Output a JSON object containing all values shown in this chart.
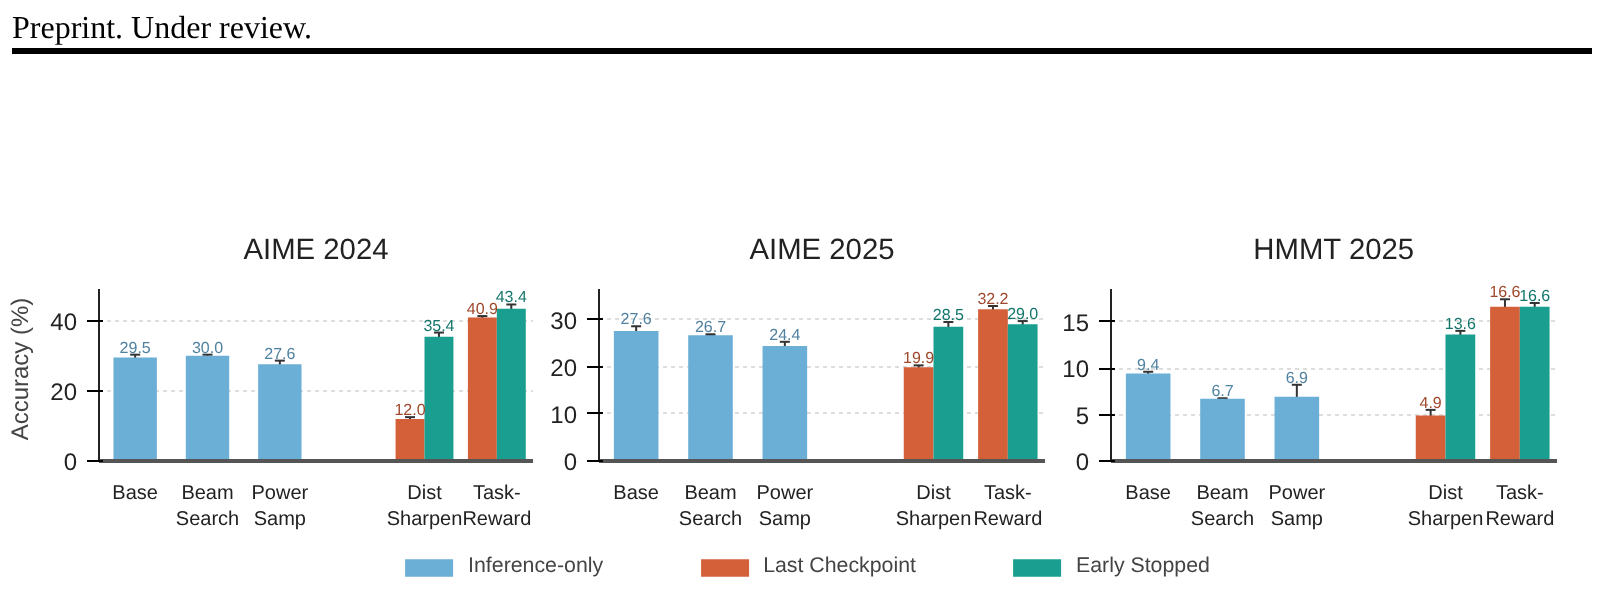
{
  "chart_data": [
    {
      "type": "bar",
      "title": "AIME 2024",
      "ylabel": "Accuracy (%)",
      "annotations": [
        "Preprint. Under review."
      ],
      "categories": [
        "Base",
        "Beam\nSearch",
        "Power\nSamp",
        null,
        "Dist\nSharpen",
        "Task-\nReward"
      ],
      "series": [
        {
          "name": "Inference-only",
          "color": "#6baed6",
          "values": [
            29.5,
            30.0,
            27.6,
            null,
            null,
            null
          ],
          "errors": [
            0.8,
            0.3,
            1.0,
            null,
            null,
            null
          ],
          "value_labels": [
            "29.5",
            "30.0",
            "27.6",
            null,
            null,
            null
          ]
        },
        {
          "name": "Last Checkpoint",
          "color": "#d4603a",
          "values": [
            null,
            null,
            null,
            null,
            12.0,
            40.9
          ],
          "errors": [
            null,
            null,
            null,
            null,
            0.5,
            0.4
          ],
          "value_labels": [
            null,
            null,
            null,
            null,
            "12.0",
            "40.9"
          ]
        },
        {
          "name": "Early Stopped",
          "color": "#1a9e8f",
          "values": [
            null,
            null,
            null,
            null,
            35.4,
            43.4
          ],
          "errors": [
            null,
            null,
            null,
            null,
            1.2,
            1.2
          ],
          "value_labels": [
            null,
            null,
            null,
            null,
            "35.4",
            "43.4"
          ]
        }
      ],
      "ylim": [
        0,
        49
      ],
      "yticks": [
        0,
        20,
        40
      ],
      "grid": "y",
      "legend": "bottom"
    },
    {
      "type": "bar",
      "title": "AIME 2025",
      "categories": [
        "Base",
        "Beam\nSearch",
        "Power\nSamp",
        null,
        "Dist\nSharpen",
        "Task-\nReward"
      ],
      "series": [
        {
          "name": "Inference-only",
          "color": "#6baed6",
          "values": [
            27.6,
            26.7,
            24.4,
            null,
            null,
            null
          ],
          "errors": [
            1.0,
            0.2,
            0.9,
            null,
            null,
            null
          ],
          "value_labels": [
            "27.6",
            "26.7",
            "24.4",
            null,
            null,
            null
          ]
        },
        {
          "name": "Last Checkpoint",
          "color": "#d4603a",
          "values": [
            null,
            null,
            null,
            null,
            19.9,
            32.2
          ],
          "errors": [
            null,
            null,
            null,
            null,
            0.4,
            0.7
          ],
          "value_labels": [
            null,
            null,
            null,
            null,
            "19.9",
            "32.2"
          ]
        },
        {
          "name": "Early Stopped",
          "color": "#1a9e8f",
          "values": [
            null,
            null,
            null,
            null,
            28.5,
            29.0
          ],
          "errors": [
            null,
            null,
            null,
            null,
            1.0,
            0.7
          ],
          "value_labels": [
            null,
            null,
            null,
            null,
            "28.5",
            "29.0"
          ]
        }
      ],
      "ylim": [
        0,
        36.5
      ],
      "yticks": [
        0,
        10,
        20,
        30
      ],
      "grid": "y",
      "legend": "bottom"
    },
    {
      "type": "bar",
      "title": "HMMT 2025",
      "categories": [
        "Base",
        "Beam\nSearch",
        "Power\nSamp",
        null,
        "Dist\nSharpen",
        "Task-\nReward"
      ],
      "series": [
        {
          "name": "Inference-only",
          "color": "#6baed6",
          "values": [
            9.4,
            6.7,
            6.9,
            null,
            null,
            null
          ],
          "errors": [
            0.2,
            0.05,
            1.3,
            null,
            null,
            null
          ],
          "value_labels": [
            "9.4",
            "6.7",
            "6.9",
            null,
            null,
            null
          ]
        },
        {
          "name": "Last Checkpoint",
          "color": "#d4603a",
          "values": [
            null,
            null,
            null,
            null,
            4.9,
            16.6
          ],
          "errors": [
            null,
            null,
            null,
            null,
            0.6,
            0.8
          ],
          "value_labels": [
            null,
            null,
            null,
            null,
            "4.9",
            "16.6"
          ]
        },
        {
          "name": "Early Stopped",
          "color": "#1a9e8f",
          "values": [
            null,
            null,
            null,
            null,
            13.6,
            16.6
          ],
          "errors": [
            null,
            null,
            null,
            null,
            0.4,
            0.4
          ],
          "value_labels": [
            null,
            null,
            null,
            null,
            "13.6",
            "16.6"
          ]
        }
      ],
      "ylim": [
        0,
        18.5
      ],
      "yticks": [
        0,
        5,
        10,
        15
      ],
      "grid": "y",
      "legend": "bottom"
    }
  ]
}
